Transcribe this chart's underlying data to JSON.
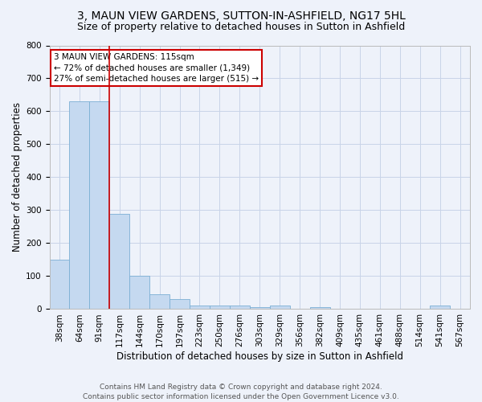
{
  "title1": "3, MAUN VIEW GARDENS, SUTTON-IN-ASHFIELD, NG17 5HL",
  "title2": "Size of property relative to detached houses in Sutton in Ashfield",
  "xlabel": "Distribution of detached houses by size in Sutton in Ashfield",
  "ylabel": "Number of detached properties",
  "bar_labels": [
    "38sqm",
    "64sqm",
    "91sqm",
    "117sqm",
    "144sqm",
    "170sqm",
    "197sqm",
    "223sqm",
    "250sqm",
    "276sqm",
    "303sqm",
    "329sqm",
    "356sqm",
    "382sqm",
    "409sqm",
    "435sqm",
    "461sqm",
    "488sqm",
    "514sqm",
    "541sqm",
    "567sqm"
  ],
  "bar_values": [
    150,
    630,
    630,
    290,
    100,
    45,
    30,
    10,
    10,
    10,
    5,
    10,
    0,
    5,
    0,
    0,
    0,
    0,
    0,
    10,
    0
  ],
  "bar_color": "#c5d9f0",
  "bar_edge_color": "#7bafd4",
  "grid_color": "#c8d4e8",
  "background_color": "#eef2fa",
  "vline_color": "#cc0000",
  "annotation_text": "3 MAUN VIEW GARDENS: 115sqm\n← 72% of detached houses are smaller (1,349)\n27% of semi-detached houses are larger (515) →",
  "annotation_box_color": "white",
  "annotation_box_edge": "#cc0000",
  "footer1": "Contains HM Land Registry data © Crown copyright and database right 2024.",
  "footer2": "Contains public sector information licensed under the Open Government Licence v3.0.",
  "ylim": [
    0,
    800
  ],
  "title1_fontsize": 10,
  "title2_fontsize": 9,
  "xlabel_fontsize": 8.5,
  "ylabel_fontsize": 8.5,
  "tick_fontsize": 7.5,
  "footer_fontsize": 6.5
}
